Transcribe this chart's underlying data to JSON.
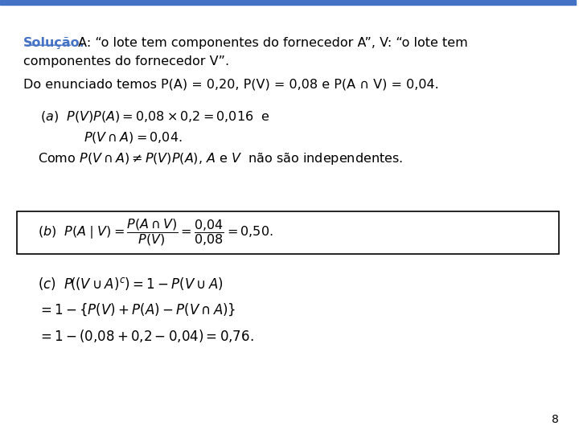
{
  "background_color": "#ffffff",
  "top_bar_color": "#4472c4",
  "top_bar_height": 0.012,
  "solution_color": "#4472c4",
  "text_color": "#000000",
  "page_number": "8",
  "title": "Solução.",
  "line1_suffix": " A: “o lote tem componentes do fornecedor A”, V: “o lote tem",
  "line2_text": "componentes do fornecedor V”.",
  "line3_text": "Do enunciado temos P(A) = 0,20, P(V) = 0,08 e P(A ∩ V) = 0,04."
}
